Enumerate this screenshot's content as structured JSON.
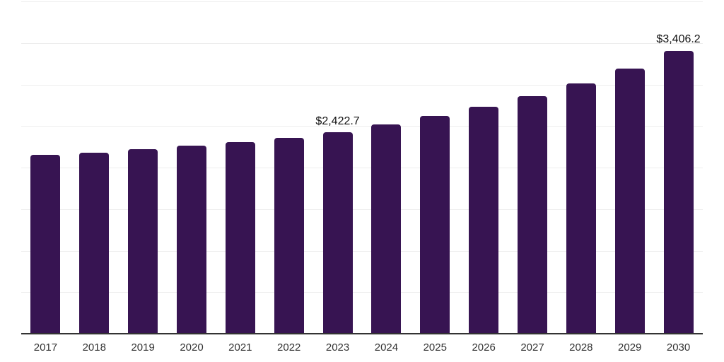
{
  "chart_data": {
    "type": "bar",
    "title": "",
    "xlabel": "",
    "ylabel": "",
    "categories": [
      "2017",
      "2018",
      "2019",
      "2020",
      "2021",
      "2022",
      "2023",
      "2024",
      "2025",
      "2026",
      "2027",
      "2028",
      "2029",
      "2030"
    ],
    "values": [
      2154,
      2179,
      2220,
      2263,
      2310,
      2361,
      2422.7,
      2518,
      2621,
      2728,
      2861,
      3016,
      3195,
      3406.2
    ],
    "data_labels": [
      "",
      "",
      "",
      "",
      "",
      "",
      "$2,422.7",
      "",
      "",
      "",
      "",
      "",
      "",
      "$3,406.2"
    ],
    "ylim": [
      0,
      4000
    ],
    "grid_step": 500,
    "grid": true,
    "y_tick_labels_visible": false,
    "legend": false,
    "colors": {
      "bar": "#371452",
      "axis_line": "#333333",
      "gridline": "#ededed",
      "tick_label": "#333333",
      "data_label": "#111111",
      "background": "#ffffff"
    }
  }
}
